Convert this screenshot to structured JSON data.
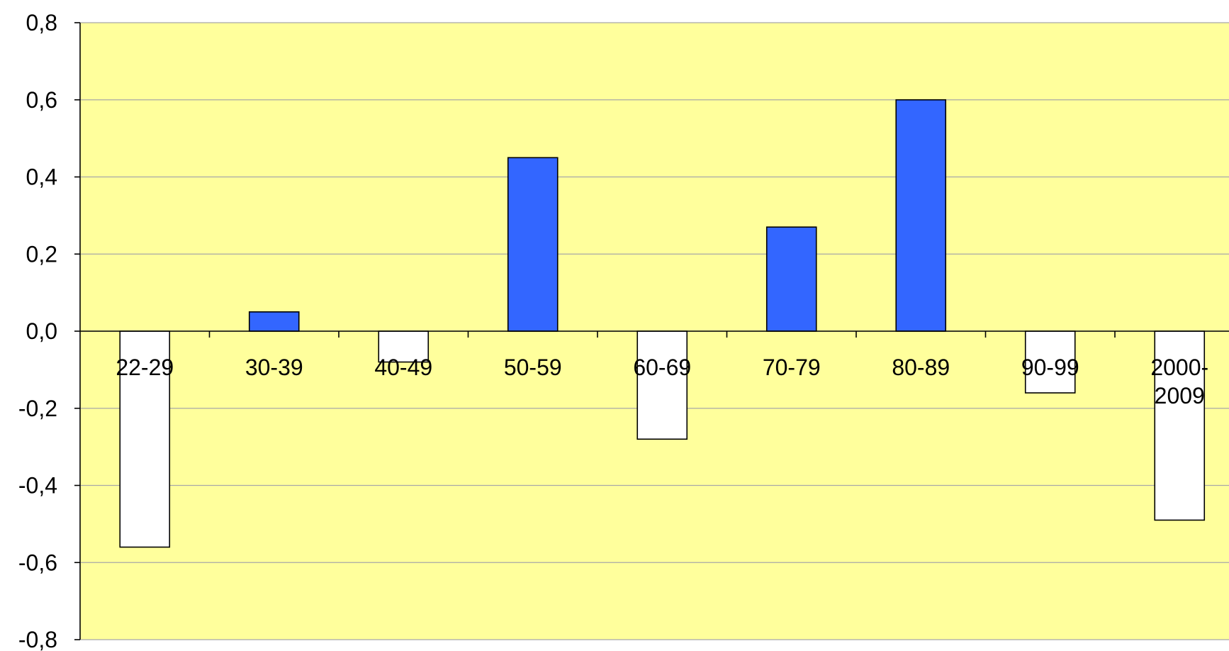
{
  "chart_data": {
    "type": "bar",
    "title": "",
    "xlabel": "",
    "ylabel": "",
    "categories": [
      [
        "22-29"
      ],
      [
        "30-39"
      ],
      [
        "40-49"
      ],
      [
        "50-59"
      ],
      [
        "60-69"
      ],
      [
        "70-79"
      ],
      [
        "80-89"
      ],
      [
        "90-99"
      ],
      [
        "2000-",
        "2009"
      ]
    ],
    "values": [
      -0.56,
      0.05,
      -0.08,
      0.45,
      -0.28,
      0.27,
      0.6,
      -0.16,
      -0.49
    ],
    "ylim": [
      -0.8,
      0.8
    ],
    "yticks": [
      "0,8",
      "0,6",
      "0,4",
      "0,2",
      "0,0",
      "-0,2",
      "-0,4",
      "-0,6",
      "-0,8"
    ],
    "grid": true,
    "colors": {
      "plot_background": "#ffff9c",
      "positive_bar": "#3366ff",
      "negative_bar": "#ffffff",
      "bar_stroke": "#000000",
      "gridline": "#a8a8a8"
    }
  }
}
